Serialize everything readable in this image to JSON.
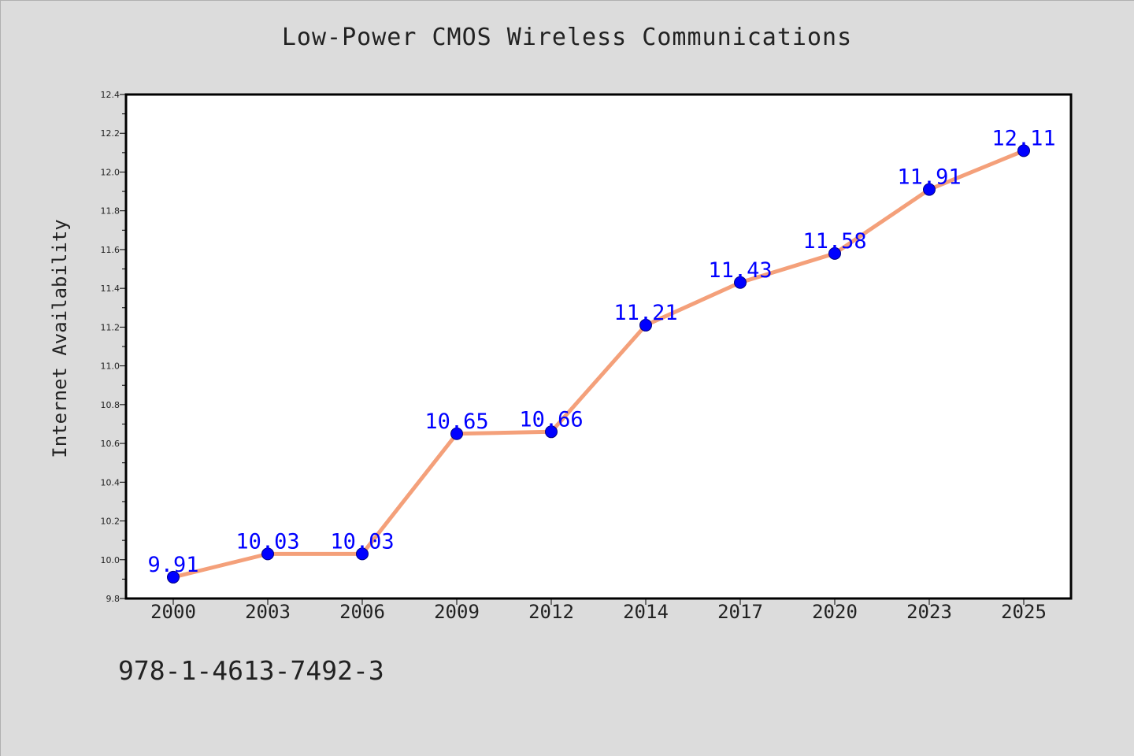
{
  "page": {
    "background": "#dcdcdc",
    "footer_text": "978-1-4613-7492-3"
  },
  "chart_data": {
    "type": "line",
    "title": "Low-Power CMOS Wireless Communications",
    "xlabel": "",
    "ylabel": "Internet Availability",
    "categories": [
      "2000",
      "2003",
      "2006",
      "2009",
      "2012",
      "2014",
      "2017",
      "2020",
      "2023",
      "2025"
    ],
    "series": [
      {
        "values": [
          9.91,
          10.03,
          10.03,
          10.65,
          10.66,
          11.21,
          11.43,
          11.58,
          11.91,
          12.11
        ],
        "data_labels": [
          "9.91",
          "10.03",
          "10.03",
          "10.65",
          "10.66",
          "11.21",
          "11.43",
          "11.58",
          "11.91",
          "12.11"
        ],
        "line_color": "#f4a07a",
        "marker_color": "#0000ff",
        "label_color": "#0000ff"
      }
    ],
    "ylim": [
      9.8,
      12.4
    ],
    "yticks": [
      "9.8",
      "10.0",
      "10.2",
      "10.4",
      "10.6",
      "10.8",
      "11.0",
      "11.2",
      "11.4",
      "11.6",
      "11.8",
      "12.0",
      "12.2",
      "12.4"
    ],
    "grid": false,
    "legend": "none"
  }
}
